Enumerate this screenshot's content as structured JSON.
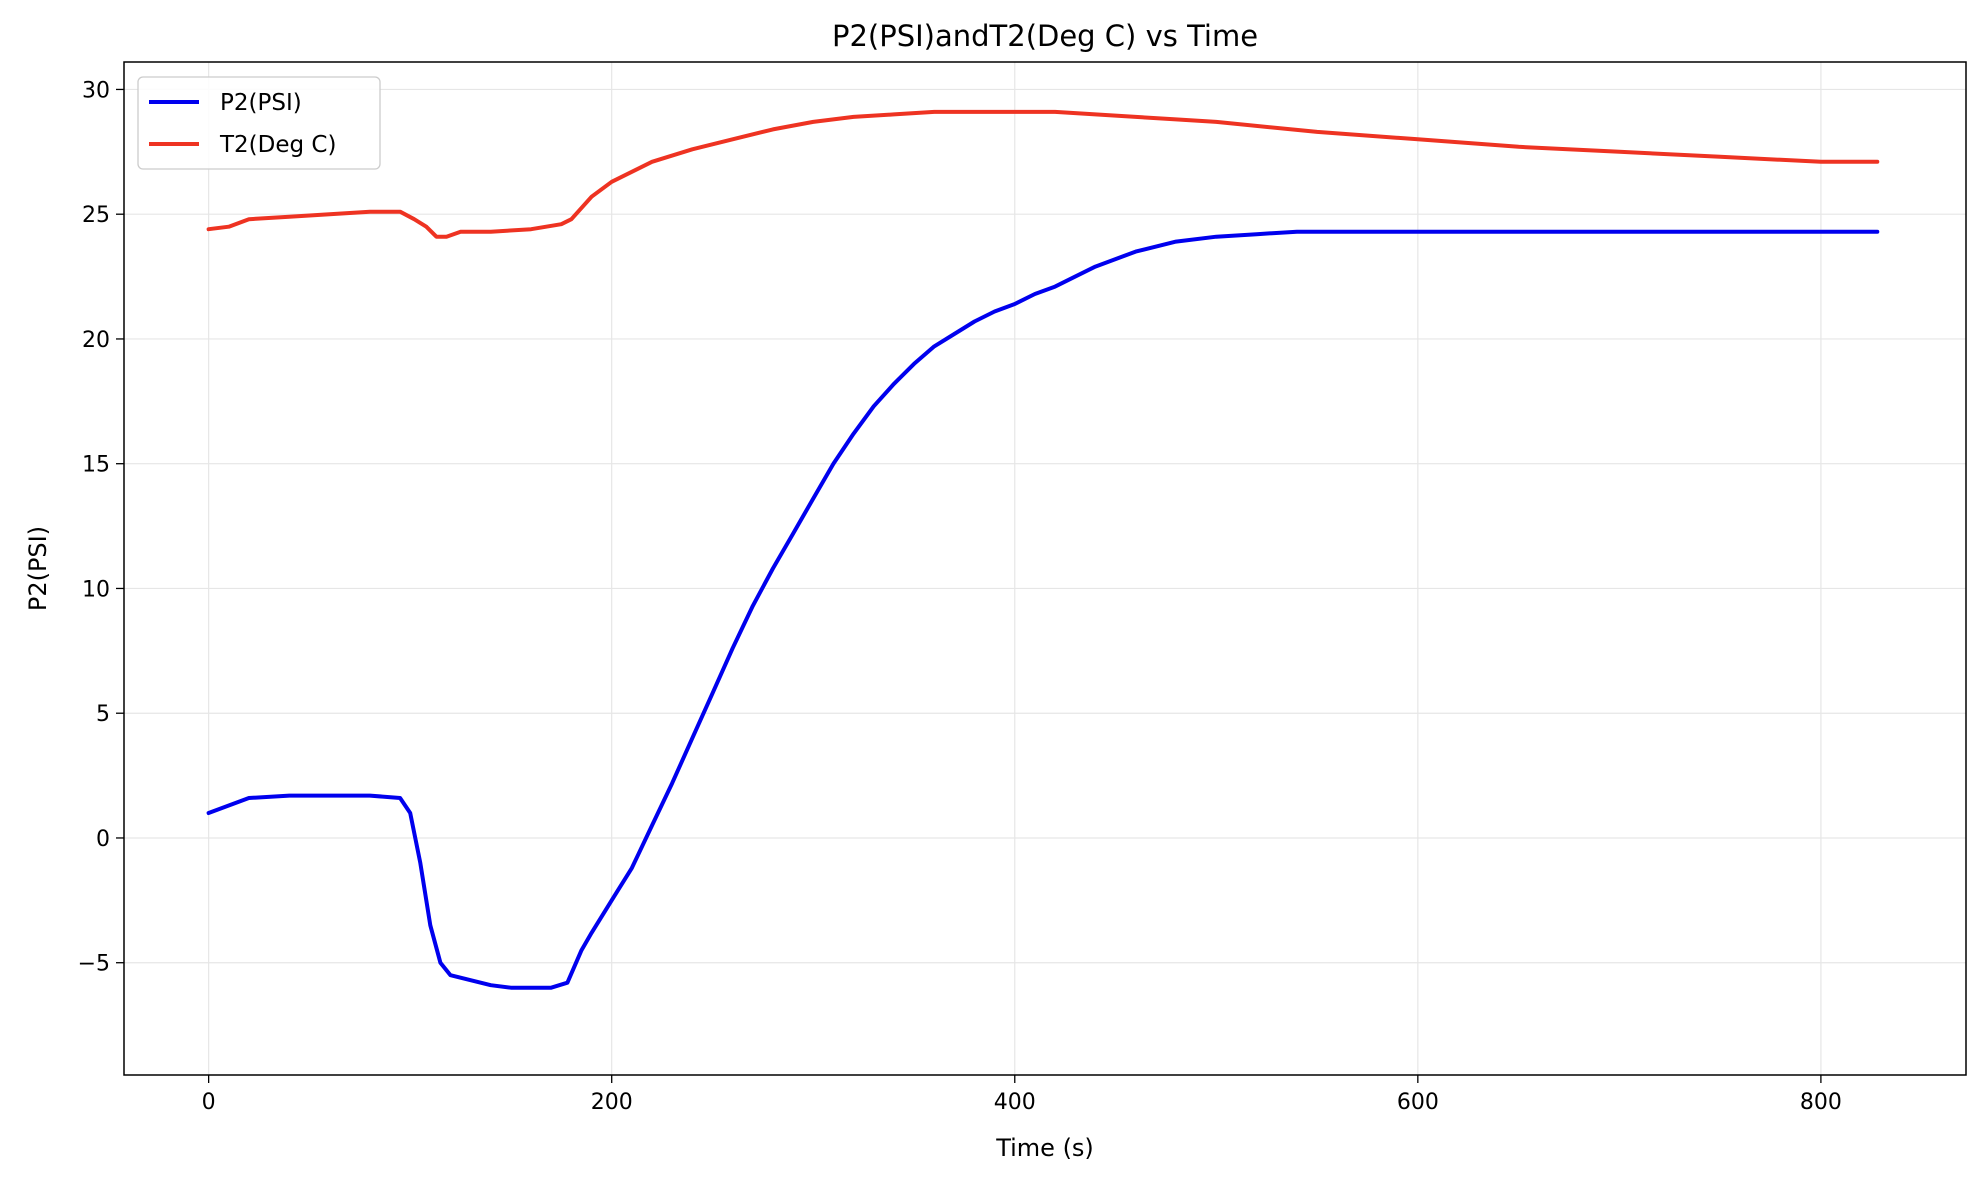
{
  "chart_data": {
    "type": "line",
    "title": "P2(PSI)andT2(Deg C) vs Time",
    "xlabel": "Time (s)",
    "ylabel": "P2(PSI)",
    "xlim": [
      -42,
      872
    ],
    "ylim": [
      -9.5,
      31.1
    ],
    "xticks": [
      0,
      200,
      400,
      600,
      800
    ],
    "yticks": [
      -5,
      0,
      5,
      10,
      15,
      20,
      25,
      30
    ],
    "ytick_labels": [
      "−5",
      "0",
      "5",
      "10",
      "15",
      "20",
      "25",
      "30"
    ],
    "grid": true,
    "legend": {
      "position": "top-left"
    },
    "series": [
      {
        "name": "P2(PSI)",
        "color": "#0000ee",
        "x": [
          0,
          20,
          40,
          60,
          80,
          95,
          100,
          105,
          110,
          115,
          120,
          130,
          140,
          150,
          160,
          170,
          178,
          185,
          190,
          200,
          210,
          220,
          230,
          240,
          250,
          260,
          270,
          280,
          290,
          300,
          310,
          320,
          330,
          340,
          350,
          360,
          370,
          380,
          390,
          400,
          410,
          420,
          430,
          440,
          450,
          460,
          480,
          500,
          520,
          540,
          560,
          600,
          650,
          700,
          750,
          800,
          828
        ],
        "y": [
          1.0,
          1.6,
          1.7,
          1.7,
          1.7,
          1.6,
          1.0,
          -1.0,
          -3.5,
          -5.0,
          -5.5,
          -5.7,
          -5.9,
          -6.0,
          -6.0,
          -6.0,
          -5.8,
          -4.5,
          -3.8,
          -2.5,
          -1.2,
          0.5,
          2.2,
          4.0,
          5.8,
          7.6,
          9.3,
          10.8,
          12.2,
          13.6,
          15.0,
          16.2,
          17.3,
          18.2,
          19.0,
          19.7,
          20.2,
          20.7,
          21.1,
          21.4,
          21.8,
          22.1,
          22.5,
          22.9,
          23.2,
          23.5,
          23.9,
          24.1,
          24.2,
          24.3,
          24.3,
          24.3,
          24.3,
          24.3,
          24.3,
          24.3,
          24.3
        ]
      },
      {
        "name": "T2(Deg C)",
        "color": "#ee3322",
        "x": [
          0,
          10,
          20,
          40,
          60,
          80,
          95,
          102,
          108,
          113,
          118,
          125,
          140,
          160,
          175,
          180,
          190,
          200,
          220,
          240,
          260,
          280,
          300,
          320,
          340,
          360,
          380,
          400,
          420,
          440,
          460,
          480,
          500,
          550,
          600,
          650,
          700,
          750,
          800,
          828
        ],
        "y": [
          24.4,
          24.5,
          24.8,
          24.9,
          25.0,
          25.1,
          25.1,
          24.8,
          24.5,
          24.1,
          24.1,
          24.3,
          24.3,
          24.4,
          24.6,
          24.8,
          25.7,
          26.3,
          27.1,
          27.6,
          28.0,
          28.4,
          28.7,
          28.9,
          29.0,
          29.1,
          29.1,
          29.1,
          29.1,
          29.0,
          28.9,
          28.8,
          28.7,
          28.3,
          28.0,
          27.7,
          27.5,
          27.3,
          27.1,
          27.1
        ]
      }
    ]
  }
}
